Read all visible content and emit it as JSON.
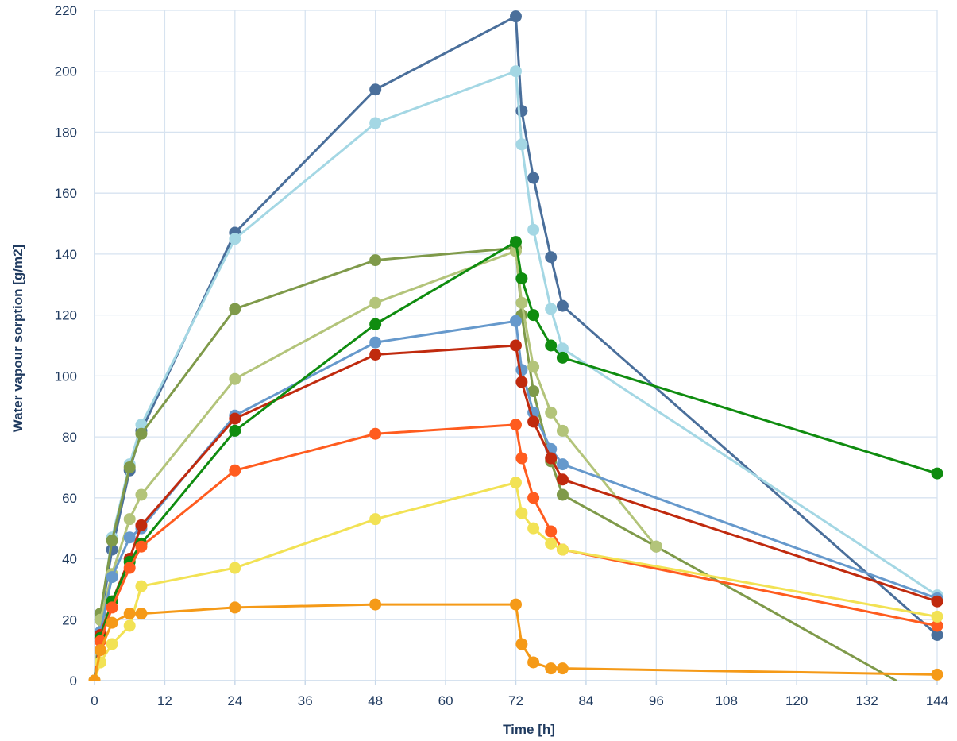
{
  "chart_data": {
    "type": "line",
    "title": "",
    "xlabel": "Time [h]",
    "ylabel": "Water vapour sorption [g/m2]",
    "xlim": [
      0,
      144
    ],
    "ylim": [
      0,
      220
    ],
    "x_ticks": [
      0,
      12,
      24,
      36,
      48,
      60,
      72,
      84,
      96,
      108,
      120,
      132,
      144
    ],
    "y_ticks": [
      0,
      20,
      40,
      60,
      80,
      100,
      120,
      140,
      160,
      180,
      200,
      220
    ],
    "grid": true,
    "legend": "none",
    "series": [
      {
        "color": "#4a6f9b",
        "points": [
          [
            0,
            0
          ],
          [
            1,
            20
          ],
          [
            3,
            43
          ],
          [
            6,
            69
          ],
          [
            8,
            82
          ],
          [
            24,
            147
          ],
          [
            48,
            194
          ],
          [
            72,
            218
          ],
          [
            73,
            187
          ],
          [
            75,
            165
          ],
          [
            78,
            139
          ],
          [
            80,
            123
          ],
          [
            144,
            15
          ]
        ]
      },
      {
        "color": "#a4d7e4",
        "points": [
          [
            0,
            0
          ],
          [
            1,
            21
          ],
          [
            3,
            47
          ],
          [
            6,
            71
          ],
          [
            8,
            84
          ],
          [
            24,
            145
          ],
          [
            48,
            183
          ],
          [
            72,
            200
          ],
          [
            73,
            176
          ],
          [
            75,
            148
          ],
          [
            78,
            122
          ],
          [
            80,
            109
          ],
          [
            144,
            28
          ]
        ]
      },
      {
        "color": "#7f9a4a",
        "points": [
          [
            0,
            0
          ],
          [
            1,
            22
          ],
          [
            3,
            46
          ],
          [
            6,
            70
          ],
          [
            8,
            81
          ],
          [
            24,
            122
          ],
          [
            48,
            138
          ],
          [
            72,
            142
          ],
          [
            73,
            120
          ],
          [
            75,
            95
          ],
          [
            78,
            72
          ],
          [
            80,
            61
          ],
          [
            96,
            44
          ],
          [
            137,
            0
          ]
        ]
      },
      {
        "color": "#b3c47a",
        "points": [
          [
            0,
            0
          ],
          [
            1,
            20
          ],
          [
            3,
            35
          ],
          [
            6,
            53
          ],
          [
            8,
            61
          ],
          [
            24,
            99
          ],
          [
            48,
            124
          ],
          [
            72,
            141
          ],
          [
            73,
            124
          ],
          [
            75,
            103
          ],
          [
            78,
            88
          ],
          [
            80,
            82
          ],
          [
            96,
            44
          ]
        ]
      },
      {
        "color": "#6699cc",
        "points": [
          [
            0,
            0
          ],
          [
            1,
            16
          ],
          [
            3,
            34
          ],
          [
            6,
            47
          ],
          [
            8,
            50
          ],
          [
            24,
            87
          ],
          [
            48,
            111
          ],
          [
            72,
            118
          ],
          [
            73,
            102
          ],
          [
            75,
            88
          ],
          [
            78,
            76
          ],
          [
            80,
            71
          ],
          [
            144,
            27
          ]
        ]
      },
      {
        "color": "#c02a0e",
        "points": [
          [
            0,
            0
          ],
          [
            1,
            15
          ],
          [
            3,
            26
          ],
          [
            6,
            40
          ],
          [
            8,
            51
          ],
          [
            24,
            86
          ],
          [
            48,
            107
          ],
          [
            72,
            110
          ],
          [
            73,
            98
          ],
          [
            75,
            85
          ],
          [
            78,
            73
          ],
          [
            80,
            66
          ],
          [
            144,
            26
          ]
        ]
      },
      {
        "color": "#0f8c0f",
        "points": [
          [
            0,
            0
          ],
          [
            1,
            14
          ],
          [
            3,
            26
          ],
          [
            6,
            39
          ],
          [
            8,
            45
          ],
          [
            24,
            82
          ],
          [
            48,
            117
          ],
          [
            72,
            144
          ],
          [
            73,
            132
          ],
          [
            75,
            120
          ],
          [
            78,
            110
          ],
          [
            80,
            106
          ],
          [
            144,
            68
          ]
        ]
      },
      {
        "color": "#ff5c1f",
        "points": [
          [
            0,
            0
          ],
          [
            1,
            13
          ],
          [
            3,
            24
          ],
          [
            6,
            37
          ],
          [
            8,
            44
          ],
          [
            24,
            69
          ],
          [
            48,
            81
          ],
          [
            72,
            84
          ],
          [
            73,
            73
          ],
          [
            75,
            60
          ],
          [
            78,
            49
          ],
          [
            80,
            43
          ],
          [
            144,
            18
          ]
        ]
      },
      {
        "color": "#f2e254",
        "points": [
          [
            0,
            0
          ],
          [
            1,
            6
          ],
          [
            3,
            12
          ],
          [
            6,
            18
          ],
          [
            8,
            31
          ],
          [
            24,
            37
          ],
          [
            48,
            53
          ],
          [
            72,
            65
          ],
          [
            73,
            55
          ],
          [
            75,
            50
          ],
          [
            78,
            45
          ],
          [
            80,
            43
          ],
          [
            144,
            21
          ]
        ]
      },
      {
        "color": "#f59a18",
        "points": [
          [
            0,
            0
          ],
          [
            1,
            10
          ],
          [
            3,
            19
          ],
          [
            6,
            22
          ],
          [
            8,
            22
          ],
          [
            24,
            24
          ],
          [
            48,
            25
          ],
          [
            72,
            25
          ],
          [
            73,
            12
          ],
          [
            75,
            6
          ],
          [
            78,
            4
          ],
          [
            80,
            4
          ],
          [
            144,
            2
          ]
        ]
      }
    ]
  }
}
